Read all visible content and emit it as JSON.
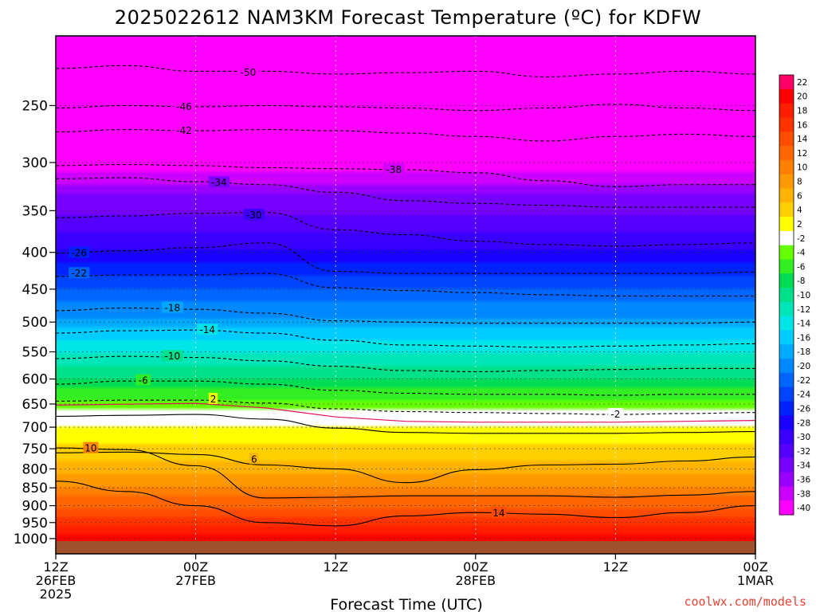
{
  "chart_data": {
    "type": "contour",
    "title": "2025022612 NAM3KM Forecast Temperature (ºC) for KDFW",
    "xlabel": "Forecast Time (UTC)",
    "ylabel": "",
    "y_scale": "log-pressure",
    "y_range_hPa": [
      1050,
      200
    ],
    "y_ticks": [
      250,
      300,
      350,
      400,
      450,
      500,
      550,
      600,
      650,
      700,
      750,
      800,
      850,
      900,
      950,
      1000
    ],
    "x_range_hours": [
      0,
      60
    ],
    "x_ticks": [
      {
        "hour": 0,
        "l1": "12Z",
        "l2": "26FEB",
        "l3": "2025"
      },
      {
        "hour": 12,
        "l1": "00Z",
        "l2": "27FEB",
        "l3": ""
      },
      {
        "hour": 24,
        "l1": "12Z",
        "l2": "",
        "l3": ""
      },
      {
        "hour": 36,
        "l1": "00Z",
        "l2": "28FEB",
        "l3": ""
      },
      {
        "hour": 48,
        "l1": "12Z",
        "l2": "",
        "l3": ""
      },
      {
        "hour": 60,
        "l1": "00Z",
        "l2": "1MAR",
        "l3": ""
      }
    ],
    "colorbar": {
      "levels": [
        22,
        20,
        18,
        16,
        14,
        12,
        10,
        8,
        6,
        4,
        2,
        -2,
        -4,
        -6,
        -8,
        -10,
        -12,
        -14,
        -16,
        -18,
        -20,
        -22,
        -24,
        -26,
        -28,
        -30,
        -32,
        -34,
        -36,
        -38,
        -40
      ],
      "colors": [
        "#ff0066",
        "#ff0000",
        "#ff1e00",
        "#ff3300",
        "#ff4d00",
        "#ff6600",
        "#ff8000",
        "#ff9900",
        "#ffb300",
        "#ffd000",
        "#ffff00",
        "#ffffff",
        "#66ff00",
        "#33ee22",
        "#00dd55",
        "#00e08a",
        "#00e6b8",
        "#00e6e6",
        "#00ccff",
        "#00aaff",
        "#0088ff",
        "#0066ff",
        "#0044ff",
        "#0022ff",
        "#1a00ff",
        "#3a00ff",
        "#5500ff",
        "#7700ff",
        "#9900ff",
        "#cc00ff",
        "#ff00ff"
      ]
    },
    "surface_pressure_hPa": 1008,
    "isotherms": [
      {
        "value": -50,
        "label": "-50",
        "label_at": [
          16.5,
          225
        ],
        "points": [
          [
            0,
            222
          ],
          [
            6,
            220
          ],
          [
            12,
            224
          ],
          [
            18,
            224
          ],
          [
            24,
            226
          ],
          [
            30,
            225
          ],
          [
            36,
            224
          ],
          [
            42,
            228
          ],
          [
            48,
            226
          ],
          [
            54,
            224
          ],
          [
            60,
            226
          ]
        ]
      },
      {
        "value": -46,
        "label": "-46",
        "label_at": [
          11,
          251
        ],
        "points": [
          [
            0,
            252
          ],
          [
            6,
            250
          ],
          [
            12,
            251
          ],
          [
            18,
            250
          ],
          [
            24,
            251
          ],
          [
            30,
            252
          ],
          [
            36,
            254
          ],
          [
            42,
            252
          ],
          [
            48,
            249
          ],
          [
            54,
            252
          ],
          [
            60,
            254
          ]
        ]
      },
      {
        "value": -42,
        "label": "-42",
        "label_at": [
          11,
          271
        ],
        "points": [
          [
            0,
            272
          ],
          [
            6,
            270
          ],
          [
            12,
            271
          ],
          [
            18,
            270
          ],
          [
            24,
            271
          ],
          [
            30,
            273
          ],
          [
            36,
            276
          ],
          [
            42,
            280
          ],
          [
            48,
            276
          ],
          [
            54,
            274
          ],
          [
            60,
            276
          ]
        ]
      },
      {
        "value": -38,
        "label": "-38",
        "label_at": [
          29,
          307
        ],
        "points": [
          [
            0,
            303
          ],
          [
            6,
            302
          ],
          [
            12,
            303
          ],
          [
            18,
            305
          ],
          [
            24,
            306
          ],
          [
            30,
            307
          ],
          [
            36,
            310
          ],
          [
            42,
            318
          ],
          [
            48,
            324
          ],
          [
            54,
            322
          ],
          [
            60,
            322
          ]
        ]
      },
      {
        "value": -34,
        "label": "-34",
        "label_at": [
          14,
          320
        ],
        "points": [
          [
            0,
            316
          ],
          [
            6,
            315
          ],
          [
            12,
            319
          ],
          [
            18,
            322
          ],
          [
            24,
            330
          ],
          [
            30,
            339
          ],
          [
            36,
            342
          ],
          [
            42,
            344
          ],
          [
            48,
            346
          ],
          [
            54,
            346
          ],
          [
            60,
            346
          ]
        ]
      },
      {
        "value": -30,
        "label": "-30",
        "label_at": [
          17,
          355
        ],
        "points": [
          [
            0,
            358
          ],
          [
            6,
            356
          ],
          [
            12,
            353
          ],
          [
            18,
            352
          ],
          [
            24,
            372
          ],
          [
            30,
            378
          ],
          [
            36,
            386
          ],
          [
            42,
            390
          ],
          [
            48,
            392
          ],
          [
            54,
            390
          ],
          [
            60,
            388
          ]
        ]
      },
      {
        "value": -26,
        "label": "-26",
        "label_at": [
          2,
          401
        ],
        "points": [
          [
            0,
            401
          ],
          [
            6,
            398
          ],
          [
            12,
            394
          ],
          [
            18,
            388
          ],
          [
            24,
            425
          ],
          [
            30,
            428
          ],
          [
            36,
            428
          ],
          [
            42,
            428
          ],
          [
            48,
            428
          ],
          [
            54,
            428
          ],
          [
            60,
            426
          ]
        ]
      },
      {
        "value": -22,
        "label": "-22",
        "label_at": [
          2,
          428
        ],
        "points": [
          [
            0,
            432
          ],
          [
            6,
            430
          ],
          [
            12,
            430
          ],
          [
            18,
            428
          ],
          [
            24,
            448
          ],
          [
            30,
            452
          ],
          [
            36,
            455
          ],
          [
            42,
            458
          ],
          [
            48,
            460
          ],
          [
            54,
            460
          ],
          [
            60,
            460
          ]
        ]
      },
      {
        "value": -18,
        "label": "-18",
        "label_at": [
          10,
          478
        ],
        "points": [
          [
            0,
            482
          ],
          [
            6,
            478
          ],
          [
            12,
            480
          ],
          [
            18,
            486
          ],
          [
            24,
            498
          ],
          [
            30,
            500
          ],
          [
            36,
            502
          ],
          [
            42,
            502
          ],
          [
            48,
            502
          ],
          [
            54,
            502
          ],
          [
            60,
            500
          ]
        ]
      },
      {
        "value": -14,
        "label": "-14",
        "label_at": [
          13,
          513
        ],
        "points": [
          [
            0,
            518
          ],
          [
            6,
            514
          ],
          [
            12,
            513
          ],
          [
            18,
            518
          ],
          [
            24,
            530
          ],
          [
            30,
            538
          ],
          [
            36,
            540
          ],
          [
            42,
            542
          ],
          [
            48,
            540
          ],
          [
            54,
            538
          ],
          [
            60,
            536
          ]
        ]
      },
      {
        "value": -10,
        "label": "-10",
        "label_at": [
          10,
          558
        ],
        "points": [
          [
            0,
            562
          ],
          [
            6,
            558
          ],
          [
            12,
            560
          ],
          [
            18,
            566
          ],
          [
            24,
            576
          ],
          [
            30,
            584
          ],
          [
            36,
            586
          ],
          [
            42,
            584
          ],
          [
            48,
            582
          ],
          [
            54,
            580
          ],
          [
            60,
            580
          ]
        ]
      },
      {
        "value": -6,
        "label": "-6",
        "label_at": [
          7.5,
          603
        ],
        "points": [
          [
            0,
            610
          ],
          [
            6,
            604
          ],
          [
            12,
            604
          ],
          [
            18,
            610
          ],
          [
            24,
            622
          ],
          [
            30,
            628
          ],
          [
            36,
            630
          ],
          [
            42,
            630
          ],
          [
            48,
            632
          ],
          [
            54,
            630
          ],
          [
            60,
            630
          ]
        ]
      },
      {
        "value": -2,
        "label": "-2",
        "label_at": [
          48,
          672
        ],
        "points": [
          [
            0,
            644
          ],
          [
            6,
            642
          ],
          [
            12,
            642
          ],
          [
            18,
            648
          ],
          [
            24,
            660
          ],
          [
            30,
            666
          ],
          [
            36,
            668
          ],
          [
            42,
            670
          ],
          [
            48,
            672
          ],
          [
            54,
            670
          ],
          [
            60,
            668
          ]
        ]
      },
      {
        "value": 2,
        "label": "2",
        "label_at": [
          13.5,
          640
        ],
        "points": [
          [
            0,
            676
          ],
          [
            6,
            674
          ],
          [
            12,
            672
          ],
          [
            18,
            682
          ],
          [
            24,
            702
          ],
          [
            30,
            712
          ],
          [
            36,
            714
          ],
          [
            42,
            714
          ],
          [
            48,
            714
          ],
          [
            54,
            712
          ],
          [
            60,
            710
          ]
        ]
      },
      {
        "value": 6,
        "label": "6",
        "label_at": [
          17,
          776
        ],
        "points": [
          [
            0,
            760
          ],
          [
            6,
            758
          ],
          [
            12,
            764
          ],
          [
            18,
            790
          ],
          [
            24,
            800
          ],
          [
            30,
            836
          ],
          [
            36,
            802
          ],
          [
            42,
            790
          ],
          [
            48,
            788
          ],
          [
            54,
            780
          ],
          [
            60,
            770
          ]
        ]
      },
      {
        "value": 10,
        "label": "10",
        "label_at": [
          3,
          749
        ],
        "points": [
          [
            0,
            748
          ],
          [
            6,
            752
          ],
          [
            12,
            792
          ],
          [
            18,
            878
          ],
          [
            24,
            876
          ],
          [
            30,
            872
          ],
          [
            36,
            872
          ],
          [
            42,
            872
          ],
          [
            48,
            876
          ],
          [
            54,
            870
          ],
          [
            60,
            860
          ]
        ]
      },
      {
        "value": 14,
        "label": "14",
        "label_at": [
          38,
          922
        ],
        "points": [
          [
            0,
            832
          ],
          [
            6,
            860
          ],
          [
            12,
            900
          ],
          [
            18,
            950
          ],
          [
            24,
            960
          ],
          [
            30,
            930
          ],
          [
            36,
            920
          ],
          [
            42,
            925
          ],
          [
            48,
            935
          ],
          [
            54,
            920
          ],
          [
            60,
            900
          ]
        ]
      }
    ]
  },
  "credit": "coolwx.com/models"
}
